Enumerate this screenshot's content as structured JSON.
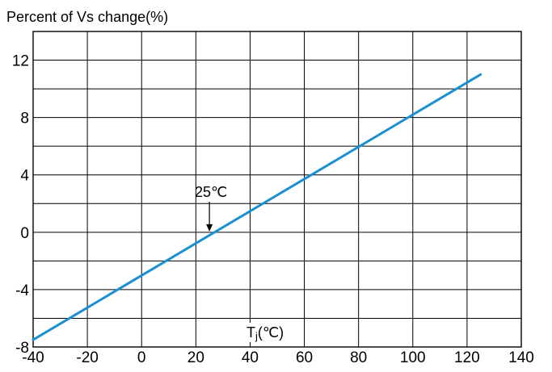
{
  "chart_data": {
    "type": "line",
    "title": "",
    "ylabel": "Percent of Vs change(%)",
    "xlabel_main": "T",
    "xlabel_sub": "j",
    "xlabel_unit": "(℃)",
    "xlim": [
      -40,
      140
    ],
    "ylim": [
      -8,
      14
    ],
    "x_ticks": [
      "-40",
      "-20",
      "0",
      "20",
      "40",
      "60",
      "80",
      "100",
      "120",
      "140"
    ],
    "y_ticks": [
      "-8",
      "-4",
      "0",
      "4",
      "8",
      "12"
    ],
    "grid": true,
    "series": [
      {
        "x": [
          -40,
          125
        ],
        "y": [
          -7.5,
          11.0
        ]
      }
    ],
    "annotation": {
      "text": "25℃",
      "x": 25,
      "y": 0
    },
    "line_color": "#1a8fd1"
  }
}
